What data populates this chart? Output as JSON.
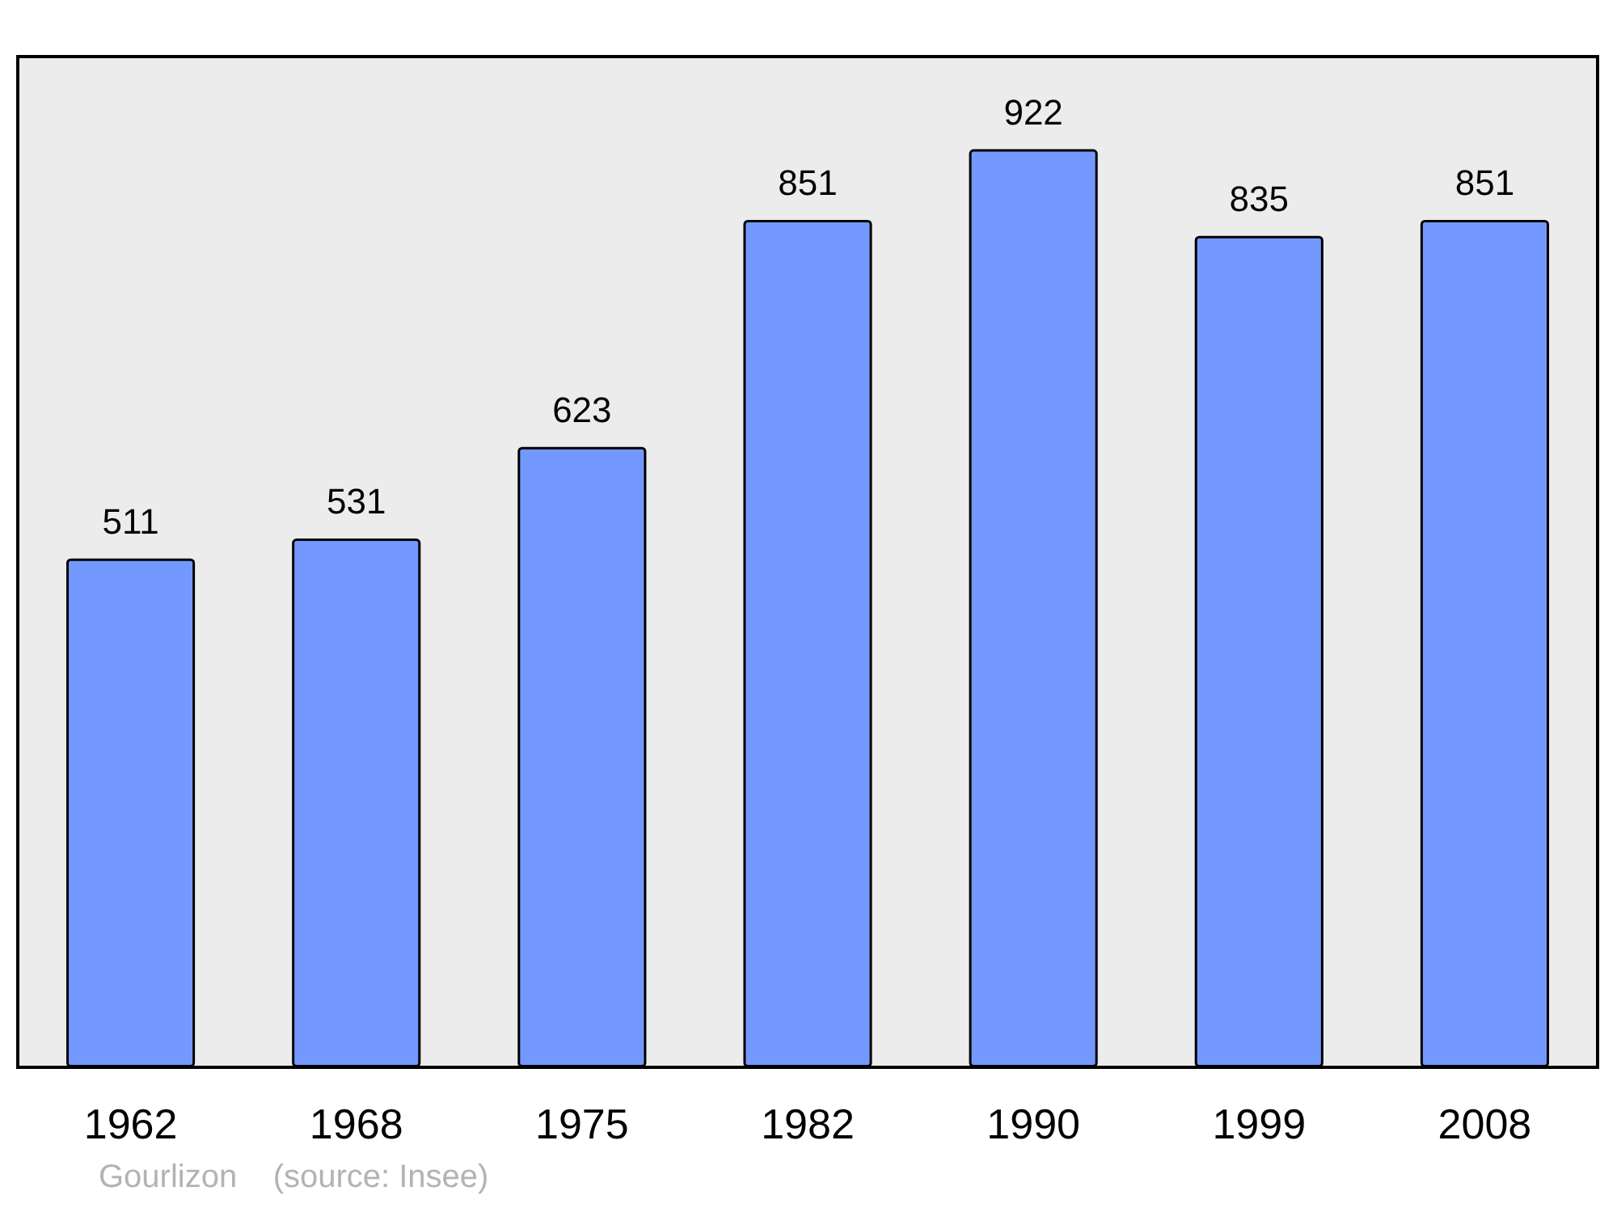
{
  "chart_data": {
    "type": "bar",
    "categories": [
      "1962",
      "1968",
      "1975",
      "1982",
      "1990",
      "1999",
      "2008"
    ],
    "values": [
      511,
      531,
      623,
      851,
      922,
      835,
      851
    ],
    "color": "#7399ff",
    "ylim": [
      0,
      1015
    ],
    "data_labels": true,
    "tick_labels": "x",
    "annotations": [
      "Gourlizon",
      "(source: Insee)"
    ]
  }
}
